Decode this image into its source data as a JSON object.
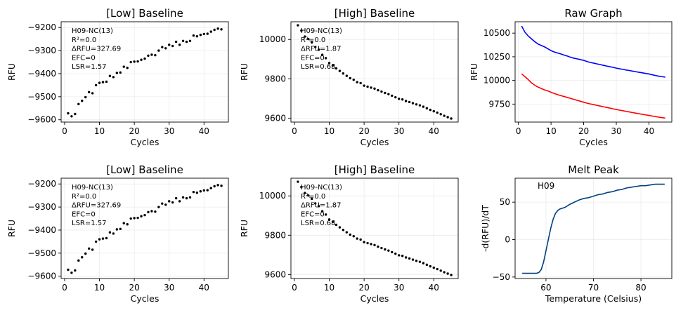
{
  "chart_data": [
    {
      "type": "scatter",
      "title": "[Low] Baseline",
      "xlabel": "Cycles",
      "ylabel": "RFU",
      "xlim": [
        -1,
        47
      ],
      "ylim": [
        -9610,
        -9175
      ],
      "xticks": [
        0,
        10,
        20,
        30,
        40
      ],
      "yticks": [
        -9600,
        -9500,
        -9400,
        -9300,
        -9200
      ],
      "ytick_labels": [
        "−9600",
        "−9500",
        "−9400",
        "−9300",
        "−9200"
      ],
      "grid": true,
      "color": "#000000",
      "annotation": [
        "H09-NC(13)",
        "R²=0.0",
        "ΔRFU=327.69",
        "EFC=0",
        "LSR=1.57"
      ],
      "x": [
        1,
        2,
        3,
        4,
        5,
        6,
        7,
        8,
        9,
        10,
        11,
        12,
        13,
        14,
        15,
        16,
        17,
        18,
        19,
        20,
        21,
        22,
        23,
        24,
        25,
        26,
        27,
        28,
        29,
        30,
        31,
        32,
        33,
        34,
        35,
        36,
        37,
        38,
        39,
        40,
        41,
        42,
        43,
        44,
        45
      ],
      "y": [
        -9572,
        -9585,
        -9575,
        -9532,
        -9518,
        -9502,
        -9480,
        -9485,
        -9450,
        -9440,
        -9437,
        -9435,
        -9410,
        -9415,
        -9397,
        -9395,
        -9370,
        -9375,
        -9350,
        -9348,
        -9347,
        -9340,
        -9335,
        -9322,
        -9318,
        -9320,
        -9300,
        -9285,
        -9290,
        -9275,
        -9280,
        -9262,
        -9275,
        -9258,
        -9262,
        -9258,
        -9235,
        -9238,
        -9232,
        -9228,
        -9227,
        -9218,
        -9210,
        -9205,
        -9208
      ]
    },
    {
      "type": "scatter",
      "title": "[High] Baseline",
      "xlabel": "Cycles",
      "ylabel": "RFU",
      "xlim": [
        -1,
        47
      ],
      "ylim": [
        9580,
        10090
      ],
      "xticks": [
        0,
        10,
        20,
        30,
        40
      ],
      "yticks": [
        9600,
        9800,
        10000
      ],
      "ytick_labels": [
        "9600",
        "9800",
        "10000"
      ],
      "grid": true,
      "color": "#000000",
      "annotation": [
        "H09-NC(13)",
        "R²=0.0",
        "ΔRFU=1.87",
        "EFC=0",
        "LSR=0.68"
      ],
      "x": [
        1,
        2,
        3,
        4,
        5,
        6,
        7,
        8,
        9,
        10,
        11,
        12,
        13,
        14,
        15,
        16,
        17,
        18,
        19,
        20,
        21,
        22,
        23,
        24,
        25,
        26,
        27,
        28,
        29,
        30,
        31,
        32,
        33,
        34,
        35,
        36,
        37,
        38,
        39,
        40,
        41,
        42,
        43,
        44,
        45
      ],
      "y": [
        10072,
        10045,
        10015,
        10002,
        9985,
        9962,
        9948,
        9922,
        9905,
        9880,
        9868,
        9853,
        9840,
        9827,
        9815,
        9803,
        9795,
        9783,
        9778,
        9765,
        9760,
        9755,
        9750,
        9742,
        9735,
        9728,
        9722,
        9714,
        9706,
        9698,
        9695,
        9687,
        9682,
        9676,
        9670,
        9665,
        9658,
        9650,
        9642,
        9635,
        9628,
        9620,
        9612,
        9605,
        9598
      ]
    },
    {
      "type": "line",
      "title": "Raw Graph",
      "xlabel": "Cycles",
      "ylabel": "RFU",
      "xlim": [
        -1,
        47
      ],
      "ylim": [
        9560,
        10620
      ],
      "xticks": [
        0,
        10,
        20,
        30,
        40
      ],
      "yticks": [
        9750,
        10000,
        10250,
        10500
      ],
      "ytick_labels": [
        "9750",
        "10000",
        "10250",
        "10500"
      ],
      "grid": true,
      "x": [
        1,
        2,
        3,
        4,
        5,
        6,
        7,
        8,
        9,
        10,
        11,
        12,
        13,
        14,
        15,
        16,
        17,
        18,
        19,
        20,
        21,
        22,
        23,
        24,
        25,
        26,
        27,
        28,
        29,
        30,
        31,
        32,
        33,
        34,
        35,
        36,
        37,
        38,
        39,
        40,
        41,
        42,
        43,
        44,
        45
      ],
      "series": [
        {
          "color": "#0000ff",
          "values": [
            10575,
            10510,
            10470,
            10440,
            10410,
            10385,
            10370,
            10355,
            10335,
            10315,
            10300,
            10290,
            10280,
            10268,
            10258,
            10245,
            10235,
            10228,
            10220,
            10212,
            10200,
            10190,
            10183,
            10175,
            10168,
            10160,
            10152,
            10145,
            10138,
            10130,
            10123,
            10117,
            10110,
            10105,
            10098,
            10092,
            10086,
            10080,
            10074,
            10068,
            10060,
            10052,
            10045,
            10040,
            10035
          ]
        },
        {
          "color": "#ff0000",
          "values": [
            10070,
            10040,
            10010,
            9975,
            9950,
            9930,
            9915,
            9900,
            9890,
            9875,
            9862,
            9850,
            9840,
            9830,
            9820,
            9810,
            9800,
            9790,
            9780,
            9770,
            9760,
            9752,
            9745,
            9737,
            9730,
            9722,
            9715,
            9708,
            9700,
            9693,
            9686,
            9680,
            9673,
            9667,
            9660,
            9654,
            9648,
            9642,
            9636,
            9630,
            9624,
            9618,
            9612,
            9607,
            9602
          ]
        }
      ]
    },
    {
      "type": "scatter",
      "title": "[Low] Baseline",
      "xlabel": "Cycles",
      "ylabel": "RFU",
      "xlim": [
        -1,
        47
      ],
      "ylim": [
        -9610,
        -9175
      ],
      "xticks": [
        0,
        10,
        20,
        30,
        40
      ],
      "yticks": [
        -9600,
        -9500,
        -9400,
        -9300,
        -9200
      ],
      "ytick_labels": [
        "−9600",
        "−9500",
        "−9400",
        "−9300",
        "−9200"
      ],
      "grid": true,
      "color": "#000000",
      "annotation": [
        "H09-NC(13)",
        "R²=0.0",
        "ΔRFU=327.69",
        "EFC=0",
        "LSR=1.57"
      ],
      "x": [
        1,
        2,
        3,
        4,
        5,
        6,
        7,
        8,
        9,
        10,
        11,
        12,
        13,
        14,
        15,
        16,
        17,
        18,
        19,
        20,
        21,
        22,
        23,
        24,
        25,
        26,
        27,
        28,
        29,
        30,
        31,
        32,
        33,
        34,
        35,
        36,
        37,
        38,
        39,
        40,
        41,
        42,
        43,
        44,
        45
      ],
      "y": [
        -9572,
        -9585,
        -9575,
        -9532,
        -9518,
        -9502,
        -9480,
        -9485,
        -9450,
        -9440,
        -9437,
        -9435,
        -9410,
        -9415,
        -9397,
        -9395,
        -9370,
        -9375,
        -9350,
        -9348,
        -9347,
        -9340,
        -9335,
        -9322,
        -9318,
        -9320,
        -9300,
        -9285,
        -9290,
        -9275,
        -9280,
        -9262,
        -9275,
        -9258,
        -9262,
        -9258,
        -9235,
        -9238,
        -9232,
        -9228,
        -9227,
        -9218,
        -9210,
        -9205,
        -9208
      ]
    },
    {
      "type": "scatter",
      "title": "[High] Baseline",
      "xlabel": "Cycles",
      "ylabel": "RFU",
      "xlim": [
        -1,
        47
      ],
      "ylim": [
        9580,
        10090
      ],
      "xticks": [
        0,
        10,
        20,
        30,
        40
      ],
      "yticks": [
        9600,
        9800,
        10000
      ],
      "ytick_labels": [
        "9600",
        "9800",
        "10000"
      ],
      "grid": true,
      "color": "#000000",
      "annotation": [
        "H09-NC(13)",
        "R²=0.0",
        "ΔRFU=1.87",
        "EFC=0",
        "LSR=0.68"
      ],
      "x": [
        1,
        2,
        3,
        4,
        5,
        6,
        7,
        8,
        9,
        10,
        11,
        12,
        13,
        14,
        15,
        16,
        17,
        18,
        19,
        20,
        21,
        22,
        23,
        24,
        25,
        26,
        27,
        28,
        29,
        30,
        31,
        32,
        33,
        34,
        35,
        36,
        37,
        38,
        39,
        40,
        41,
        42,
        43,
        44,
        45
      ],
      "y": [
        10072,
        10045,
        10015,
        10002,
        9985,
        9962,
        9948,
        9922,
        9905,
        9880,
        9868,
        9853,
        9840,
        9827,
        9815,
        9803,
        9795,
        9783,
        9778,
        9765,
        9760,
        9755,
        9750,
        9742,
        9735,
        9728,
        9722,
        9714,
        9706,
        9698,
        9695,
        9687,
        9682,
        9676,
        9670,
        9665,
        9658,
        9650,
        9642,
        9635,
        9628,
        9620,
        9612,
        9605,
        9598
      ]
    },
    {
      "type": "line",
      "title": "Melt Peak",
      "xlabel": "Temperature (Celsius)",
      "ylabel": "-d(RFU)/dT",
      "xlim": [
        53.5,
        86.5
      ],
      "ylim": [
        -52,
        82
      ],
      "xticks": [
        60,
        70,
        80
      ],
      "yticks": [
        -50,
        0,
        50
      ],
      "ytick_labels": [
        "−50",
        "0",
        "50"
      ],
      "grid": true,
      "annotation": [
        "H09"
      ],
      "x": [
        55,
        56,
        57,
        58,
        58.5,
        59,
        59.5,
        60,
        60.5,
        61,
        61.5,
        62,
        62.5,
        63,
        64,
        65,
        66,
        67,
        68,
        69,
        70,
        71,
        72,
        73,
        74,
        75,
        76,
        77,
        78,
        79,
        80,
        81,
        82,
        83,
        84,
        85
      ],
      "series": [
        {
          "color": "#003f7f",
          "values": [
            -45,
            -45,
            -45,
            -45,
            -44,
            -40,
            -30,
            -15,
            0,
            15,
            27,
            35,
            39,
            41,
            43,
            47,
            50,
            53,
            55,
            56,
            58,
            60,
            61,
            63,
            64,
            66,
            67,
            69,
            70,
            71,
            72,
            72,
            73,
            74,
            74,
            74
          ]
        }
      ]
    }
  ]
}
